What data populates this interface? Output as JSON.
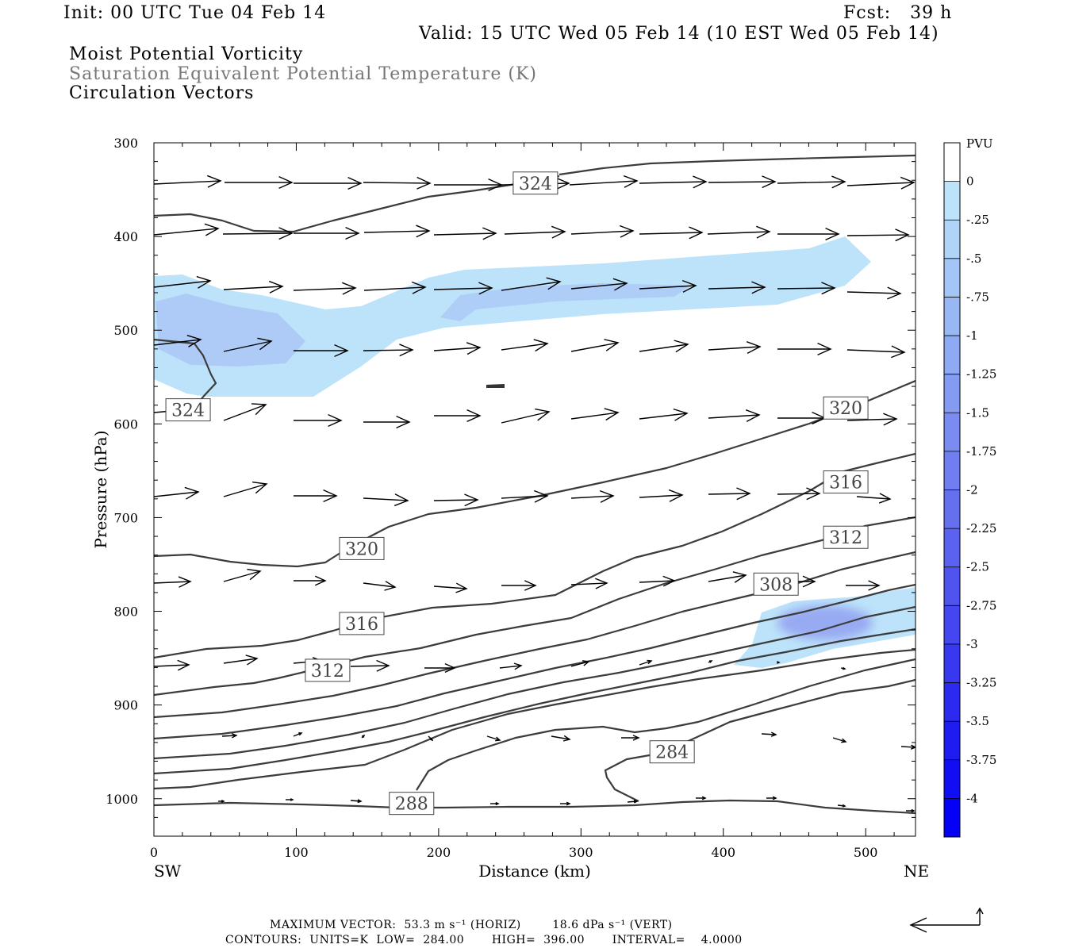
{
  "header": {
    "init": "Init: 00 UTC Tue 04 Feb 14",
    "fcst": "Fcst:   39 h",
    "valid": "Valid: 15 UTC Wed 05 Feb 14 (10 EST Wed 05 Feb 14)",
    "field1": "Moist Potential Vorticity",
    "field2": "Saturation Equivalent Potential Temperature (K)",
    "field3": "Circulation Vectors"
  },
  "footer": {
    "max_vector": "MAXIMUM VECTOR:  53.3 m s⁻¹ (HORIZ)        18.6 dPa s⁻¹ (VERT)",
    "contours": "CONTOURS:  UNITS=K  LOW=  284.00       HIGH=  396.00       INTERVAL=    4.0000"
  },
  "colors": {
    "mpv_light": "#bde3fa",
    "mpv_mid": "#aac7f5",
    "mpv_core": "#8f9cf0",
    "contour": "#3c3c3c",
    "vector": "#000000"
  },
  "chart_data": {
    "type": "cross-section",
    "xlabel": "Distance (km)",
    "ylabel": "Pressure (hPa)",
    "xlim": [
      0,
      535
    ],
    "ylim": [
      1040,
      300
    ],
    "y_scale": "linear (inverted)",
    "x_ticks": [
      "0",
      "100",
      "200",
      "300",
      "400",
      "500"
    ],
    "y_ticks": [
      "300",
      "400",
      "500",
      "600",
      "700",
      "800",
      "900",
      "1000"
    ],
    "x_end_labels": {
      "left": "SW",
      "right": "NE"
    },
    "colorbar": {
      "unit": "PVU",
      "labels": [
        "0",
        "-.25",
        "-.5",
        "-.75",
        "-1",
        "-1.25",
        "-1.5",
        "-1.75",
        "-2",
        "-2.25",
        "-2.5",
        "-2.75",
        "-3",
        "-3.25",
        "-3.5",
        "-3.75",
        "-4"
      ],
      "colors": [
        "#ffffff",
        "#bde3fa",
        "#b0d4f8",
        "#a3c6f6",
        "#98b8f4",
        "#8eaaf3",
        "#849bf2",
        "#7a8cf1",
        "#707ef0",
        "#6570ef",
        "#5a62ef",
        "#4f54ef",
        "#4446ef",
        "#3838f0",
        "#2c2af0",
        "#1f1cf2",
        "#120ef4",
        "#0500f6"
      ]
    },
    "theta_e_contour_labels": [
      {
        "text": "324",
        "x": 268,
        "p": 343
      },
      {
        "text": "324",
        "x": 24,
        "p": 585
      },
      {
        "text": "320",
        "x": 486,
        "p": 583
      },
      {
        "text": "320",
        "x": 146,
        "p": 733
      },
      {
        "text": "316",
        "x": 486,
        "p": 662
      },
      {
        "text": "316",
        "x": 146,
        "p": 813
      },
      {
        "text": "312",
        "x": 486,
        "p": 721
      },
      {
        "text": "312",
        "x": 122,
        "p": 863
      },
      {
        "text": "308",
        "x": 437,
        "p": 771
      },
      {
        "text": "284",
        "x": 364,
        "p": 950
      },
      {
        "text": "288",
        "x": 181,
        "p": 1005
      }
    ]
  }
}
